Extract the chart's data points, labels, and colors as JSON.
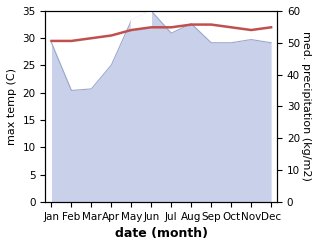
{
  "months": [
    "Jan",
    "Feb",
    "Mar",
    "Apr",
    "May",
    "Jun",
    "Jul",
    "Aug",
    "Sep",
    "Oct",
    "Nov",
    "Dec"
  ],
  "month_indices": [
    0,
    1,
    2,
    3,
    4,
    5,
    6,
    7,
    8,
    9,
    10,
    11
  ],
  "max_temp": [
    29.5,
    29.5,
    30.0,
    30.5,
    31.5,
    32.0,
    32.0,
    32.5,
    32.5,
    32.0,
    31.5,
    32.0
  ],
  "precipitation": [
    50.0,
    35.0,
    35.5,
    43.0,
    57.0,
    60.0,
    53.0,
    56.0,
    50.0,
    50.0,
    51.0,
    50.0
  ],
  "precip_fill_color": "#c8d0ea",
  "precip_line_color": "#9aa8cc",
  "temp_color": "#c0504d",
  "temp_linewidth": 1.8,
  "xlabel": "date (month)",
  "ylabel_left": "max temp (C)",
  "ylabel_right": "med. precipitation (kg/m2)",
  "ylim_left": [
    0,
    35
  ],
  "ylim_right": [
    0,
    60
  ],
  "yticks_left": [
    0,
    5,
    10,
    15,
    20,
    25,
    30,
    35
  ],
  "yticks_right": [
    0,
    10,
    20,
    30,
    40,
    50,
    60
  ],
  "bg_color": "#ffffff",
  "xlabel_fontsize": 9,
  "ylabel_fontsize": 8,
  "tick_fontsize": 7.5,
  "xlabel_fontweight": "bold"
}
